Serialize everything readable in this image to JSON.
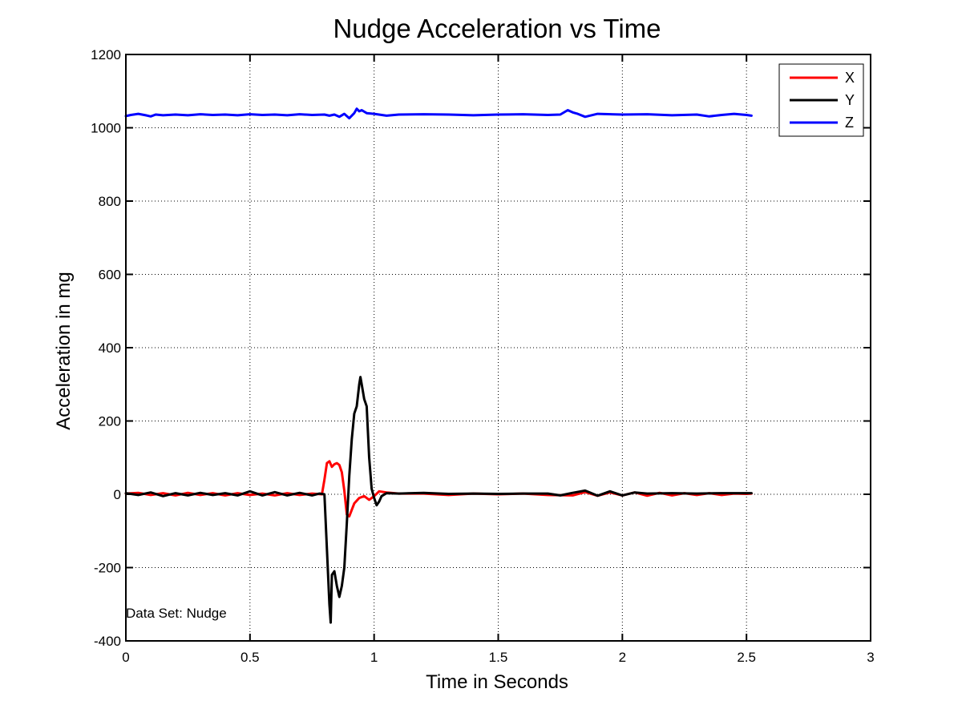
{
  "chart_data": {
    "type": "line",
    "title": "Nudge Acceleration vs Time",
    "xlabel": "Time in Seconds",
    "ylabel": "Acceleration in mg",
    "xlim": [
      0,
      3
    ],
    "ylim": [
      -400,
      1200
    ],
    "xticks": [
      "0",
      "0.5",
      "1",
      "1.5",
      "2",
      "2.5",
      "3"
    ],
    "yticks": [
      "1200",
      "1000",
      "800",
      "600",
      "400",
      "200",
      "0",
      "-200",
      "-400"
    ],
    "grid": true,
    "legend": "top-right",
    "annotation": "Data Set: Nudge",
    "series": [
      {
        "name": "X",
        "color": "#ff0000",
        "points": [
          [
            0,
            2
          ],
          [
            0.05,
            4
          ],
          [
            0.1,
            -2
          ],
          [
            0.15,
            3
          ],
          [
            0.2,
            -3
          ],
          [
            0.25,
            4
          ],
          [
            0.3,
            -2
          ],
          [
            0.35,
            3
          ],
          [
            0.4,
            -3
          ],
          [
            0.45,
            3
          ],
          [
            0.5,
            -2
          ],
          [
            0.55,
            2
          ],
          [
            0.6,
            -3
          ],
          [
            0.65,
            3
          ],
          [
            0.7,
            -2
          ],
          [
            0.75,
            2
          ],
          [
            0.79,
            0
          ],
          [
            0.8,
            40
          ],
          [
            0.81,
            85
          ],
          [
            0.82,
            90
          ],
          [
            0.83,
            75
          ],
          [
            0.84,
            82
          ],
          [
            0.85,
            85
          ],
          [
            0.86,
            80
          ],
          [
            0.87,
            60
          ],
          [
            0.88,
            10
          ],
          [
            0.89,
            -55
          ],
          [
            0.9,
            -60
          ],
          [
            0.92,
            -25
          ],
          [
            0.94,
            -10
          ],
          [
            0.96,
            -5
          ],
          [
            0.98,
            -15
          ],
          [
            1.0,
            -5
          ],
          [
            1.02,
            8
          ],
          [
            1.05,
            5
          ],
          [
            1.1,
            2
          ],
          [
            1.2,
            2
          ],
          [
            1.3,
            -2
          ],
          [
            1.4,
            2
          ],
          [
            1.5,
            0
          ],
          [
            1.6,
            2
          ],
          [
            1.7,
            -2
          ],
          [
            1.8,
            -3
          ],
          [
            1.85,
            6
          ],
          [
            1.9,
            -4
          ],
          [
            1.95,
            5
          ],
          [
            2.0,
            -3
          ],
          [
            2.05,
            5
          ],
          [
            2.1,
            -4
          ],
          [
            2.15,
            4
          ],
          [
            2.2,
            -3
          ],
          [
            2.25,
            3
          ],
          [
            2.3,
            -2
          ],
          [
            2.35,
            3
          ],
          [
            2.4,
            -2
          ],
          [
            2.45,
            2
          ],
          [
            2.5,
            1
          ],
          [
            2.52,
            2
          ]
        ]
      },
      {
        "name": "Y",
        "color": "#000000",
        "points": [
          [
            0,
            3
          ],
          [
            0.05,
            -2
          ],
          [
            0.1,
            5
          ],
          [
            0.15,
            -5
          ],
          [
            0.2,
            3
          ],
          [
            0.25,
            -3
          ],
          [
            0.3,
            4
          ],
          [
            0.35,
            -2
          ],
          [
            0.4,
            3
          ],
          [
            0.45,
            -3
          ],
          [
            0.5,
            8
          ],
          [
            0.55,
            -3
          ],
          [
            0.6,
            6
          ],
          [
            0.65,
            -3
          ],
          [
            0.7,
            4
          ],
          [
            0.75,
            -3
          ],
          [
            0.78,
            2
          ],
          [
            0.8,
            0
          ],
          [
            0.81,
            -150
          ],
          [
            0.82,
            -300
          ],
          [
            0.825,
            -350
          ],
          [
            0.83,
            -220
          ],
          [
            0.84,
            -210
          ],
          [
            0.85,
            -250
          ],
          [
            0.86,
            -280
          ],
          [
            0.87,
            -250
          ],
          [
            0.88,
            -200
          ],
          [
            0.89,
            -80
          ],
          [
            0.9,
            50
          ],
          [
            0.91,
            150
          ],
          [
            0.92,
            220
          ],
          [
            0.93,
            240
          ],
          [
            0.94,
            300
          ],
          [
            0.945,
            320
          ],
          [
            0.95,
            300
          ],
          [
            0.96,
            260
          ],
          [
            0.97,
            240
          ],
          [
            0.98,
            100
          ],
          [
            0.99,
            15
          ],
          [
            1.0,
            -10
          ],
          [
            1.01,
            -30
          ],
          [
            1.02,
            -20
          ],
          [
            1.03,
            -5
          ],
          [
            1.05,
            3
          ],
          [
            1.1,
            2
          ],
          [
            1.2,
            4
          ],
          [
            1.3,
            1
          ],
          [
            1.4,
            2
          ],
          [
            1.5,
            1
          ],
          [
            1.6,
            2
          ],
          [
            1.7,
            2
          ],
          [
            1.75,
            -3
          ],
          [
            1.8,
            4
          ],
          [
            1.85,
            10
          ],
          [
            1.9,
            -4
          ],
          [
            1.95,
            8
          ],
          [
            2.0,
            -3
          ],
          [
            2.05,
            5
          ],
          [
            2.1,
            2
          ],
          [
            2.2,
            3
          ],
          [
            2.3,
            2
          ],
          [
            2.4,
            3
          ],
          [
            2.5,
            3
          ],
          [
            2.52,
            3
          ]
        ]
      },
      {
        "name": "Z",
        "color": "#0000ff",
        "points": [
          [
            0,
            1032
          ],
          [
            0.02,
            1035
          ],
          [
            0.05,
            1038
          ],
          [
            0.08,
            1034
          ],
          [
            0.1,
            1031
          ],
          [
            0.12,
            1036
          ],
          [
            0.15,
            1034
          ],
          [
            0.2,
            1036
          ],
          [
            0.25,
            1034
          ],
          [
            0.3,
            1037
          ],
          [
            0.35,
            1035
          ],
          [
            0.4,
            1036
          ],
          [
            0.45,
            1034
          ],
          [
            0.5,
            1037
          ],
          [
            0.55,
            1035
          ],
          [
            0.6,
            1036
          ],
          [
            0.65,
            1034
          ],
          [
            0.7,
            1037
          ],
          [
            0.75,
            1035
          ],
          [
            0.8,
            1036
          ],
          [
            0.82,
            1033
          ],
          [
            0.84,
            1036
          ],
          [
            0.86,
            1030
          ],
          [
            0.88,
            1038
          ],
          [
            0.9,
            1026
          ],
          [
            0.92,
            1040
          ],
          [
            0.93,
            1052
          ],
          [
            0.94,
            1045
          ],
          [
            0.95,
            1048
          ],
          [
            0.97,
            1040
          ],
          [
            1.0,
            1038
          ],
          [
            1.05,
            1033
          ],
          [
            1.1,
            1036
          ],
          [
            1.2,
            1037
          ],
          [
            1.3,
            1036
          ],
          [
            1.4,
            1034
          ],
          [
            1.5,
            1036
          ],
          [
            1.6,
            1037
          ],
          [
            1.7,
            1035
          ],
          [
            1.75,
            1036
          ],
          [
            1.78,
            1048
          ],
          [
            1.8,
            1042
          ],
          [
            1.82,
            1038
          ],
          [
            1.85,
            1030
          ],
          [
            1.9,
            1038
          ],
          [
            2.0,
            1036
          ],
          [
            2.1,
            1037
          ],
          [
            2.2,
            1034
          ],
          [
            2.3,
            1036
          ],
          [
            2.35,
            1031
          ],
          [
            2.4,
            1035
          ],
          [
            2.45,
            1038
          ],
          [
            2.5,
            1035
          ],
          [
            2.52,
            1033
          ]
        ]
      }
    ]
  }
}
